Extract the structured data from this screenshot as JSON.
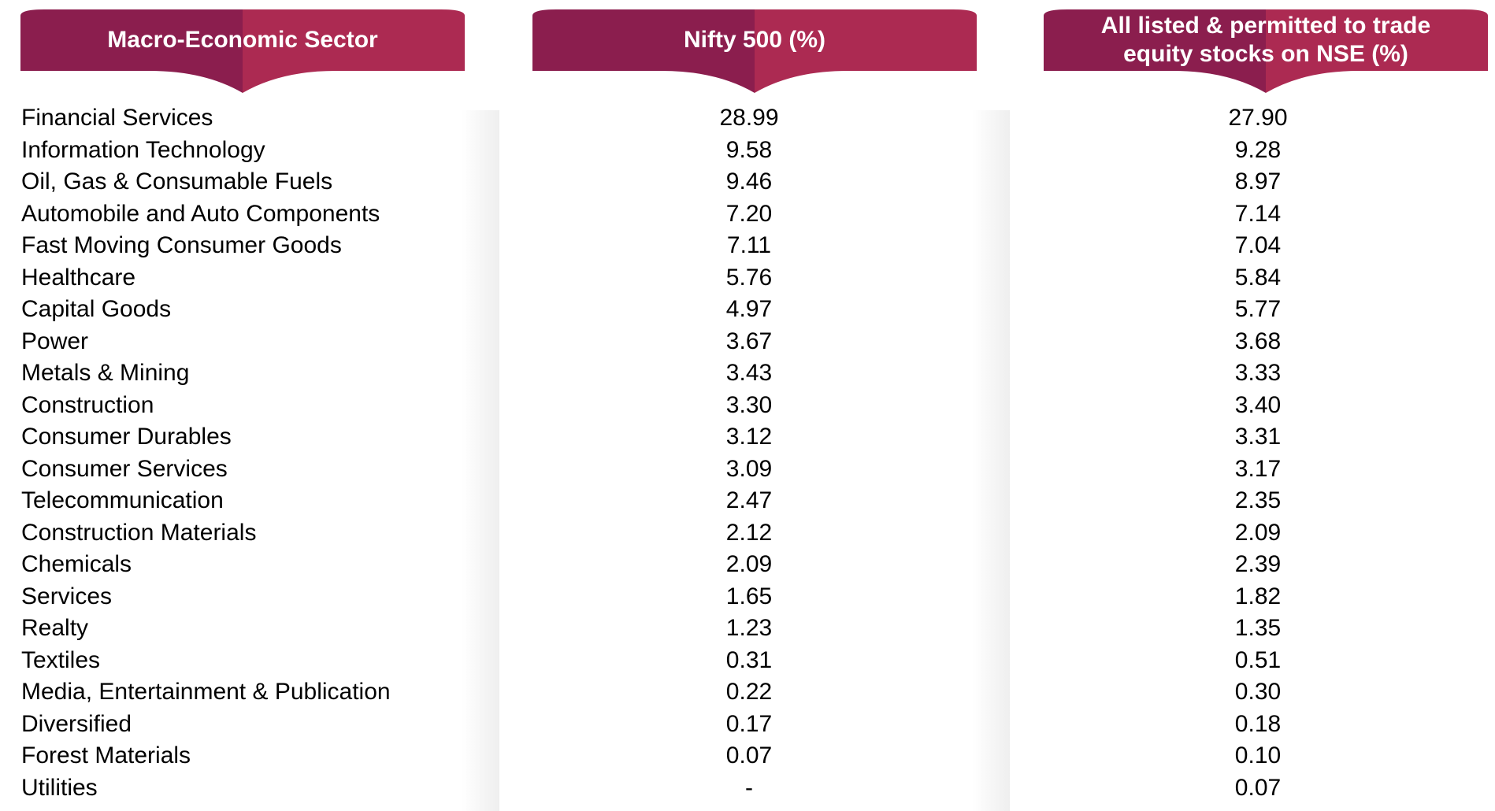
{
  "colors": {
    "header_dark": "#8b1e4e",
    "header_light": "#ac2a52",
    "text": "#000000",
    "header_text": "#ffffff"
  },
  "headers": {
    "sector": "Macro-Economic Sector",
    "nifty500": "Nifty 500 (%)",
    "all_listed_line1": "All listed & permitted to trade",
    "all_listed_line2": "equity stocks on NSE (%)"
  },
  "chart_data": {
    "type": "table",
    "columns": [
      "Macro-Economic Sector",
      "Nifty 500 (%)",
      "All listed & permitted to trade equity stocks on NSE (%)"
    ],
    "rows": [
      {
        "sector": "Financial Services",
        "nifty500": "28.99",
        "all_listed": "27.90"
      },
      {
        "sector": "Information Technology",
        "nifty500": "9.58",
        "all_listed": "9.28"
      },
      {
        "sector": "Oil, Gas & Consumable Fuels",
        "nifty500": "9.46",
        "all_listed": "8.97"
      },
      {
        "sector": "Automobile and Auto Components",
        "nifty500": "7.20",
        "all_listed": "7.14"
      },
      {
        "sector": "Fast Moving Consumer Goods",
        "nifty500": "7.11",
        "all_listed": "7.04"
      },
      {
        "sector": "Healthcare",
        "nifty500": "5.76",
        "all_listed": "5.84"
      },
      {
        "sector": "Capital Goods",
        "nifty500": "4.97",
        "all_listed": "5.77"
      },
      {
        "sector": "Power",
        "nifty500": "3.67",
        "all_listed": "3.68"
      },
      {
        "sector": "Metals & Mining",
        "nifty500": "3.43",
        "all_listed": "3.33"
      },
      {
        "sector": "Construction",
        "nifty500": "3.30",
        "all_listed": "3.40"
      },
      {
        "sector": "Consumer Durables",
        "nifty500": "3.12",
        "all_listed": "3.31"
      },
      {
        "sector": "Consumer Services",
        "nifty500": "3.09",
        "all_listed": "3.17"
      },
      {
        "sector": "Telecommunication",
        "nifty500": "2.47",
        "all_listed": "2.35"
      },
      {
        "sector": "Construction Materials",
        "nifty500": "2.12",
        "all_listed": "2.09"
      },
      {
        "sector": "Chemicals",
        "nifty500": "2.09",
        "all_listed": "2.39"
      },
      {
        "sector": "Services",
        "nifty500": "1.65",
        "all_listed": "1.82"
      },
      {
        "sector": "Realty",
        "nifty500": "1.23",
        "all_listed": "1.35"
      },
      {
        "sector": "Textiles",
        "nifty500": "0.31",
        "all_listed": "0.51"
      },
      {
        "sector": "Media, Entertainment & Publication",
        "nifty500": "0.22",
        "all_listed": "0.30"
      },
      {
        "sector": "Diversified",
        "nifty500": "0.17",
        "all_listed": "0.18"
      },
      {
        "sector": "Forest Materials",
        "nifty500": "0.07",
        "all_listed": "0.10"
      },
      {
        "sector": "Utilities",
        "nifty500": "-",
        "all_listed": "0.07"
      }
    ]
  }
}
